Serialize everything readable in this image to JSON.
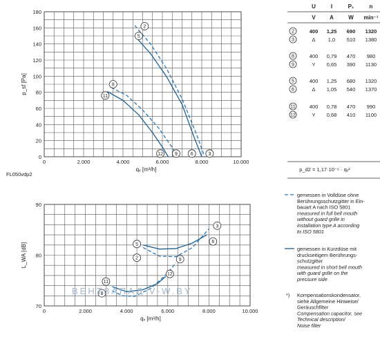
{
  "footer_code": "FL050vdp2",
  "watermark": "ВЕНТЗАПАД   V-W.BY",
  "chart_data": [
    {
      "type": "line",
      "xlabel": "qᵥ [m³/h]",
      "ylabel": "p_sf [Pa]",
      "xlim": [
        0,
        10000
      ],
      "ylim": [
        0,
        180
      ],
      "xticks": [
        0,
        2000,
        4000,
        6000,
        8000,
        10000
      ],
      "xtick_labels": [
        "0",
        "2.000",
        "4.000",
        "6.000",
        "8.000",
        "10.000"
      ],
      "yticks": [
        0,
        20,
        40,
        60,
        80,
        100,
        120,
        140,
        160,
        180
      ],
      "grid": true,
      "series": [
        {
          "marker": "2",
          "style": "dashed",
          "x": [
            4600,
            5400,
            6200,
            7000,
            7700,
            8150
          ],
          "y": [
            163,
            140,
            110,
            72,
            30,
            0
          ]
        },
        {
          "marker": "5",
          "style": "solid",
          "x": [
            4600,
            5400,
            6200,
            7000,
            7600,
            8000
          ],
          "y": [
            150,
            128,
            100,
            65,
            25,
            0
          ]
        },
        {
          "marker": "8",
          "style": "dashed",
          "x": [
            3400,
            4200,
            5000,
            5800,
            6400,
            6800
          ],
          "y": [
            86,
            76,
            58,
            36,
            15,
            0
          ]
        },
        {
          "marker": "11",
          "style": "solid",
          "x": [
            3200,
            4000,
            4800,
            5500,
            6000,
            6300
          ],
          "y": [
            81,
            70,
            52,
            30,
            12,
            0
          ]
        }
      ],
      "markers": [
        {
          "label": "2",
          "x": 5100,
          "y": 162
        },
        {
          "label": "5",
          "x": 4800,
          "y": 150
        },
        {
          "label": "8",
          "x": 3500,
          "y": 90
        },
        {
          "label": "11",
          "x": 3100,
          "y": 76
        },
        {
          "label": "12",
          "x": 5900,
          "y": 4
        },
        {
          "label": "9",
          "x": 6700,
          "y": 4
        },
        {
          "label": "6",
          "x": 7500,
          "y": 4
        },
        {
          "label": "3",
          "x": 8400,
          "y": 4
        }
      ]
    },
    {
      "type": "line",
      "xlabel": "qᵥ [m³/h]",
      "ylabel": "L_WA [dB]",
      "xlim": [
        0,
        10000
      ],
      "ylim": [
        70,
        90
      ],
      "xticks": [
        0,
        2000,
        4000,
        6000,
        8000,
        10000
      ],
      "xtick_labels": [
        "0",
        "2.000",
        "4.000",
        "6.000",
        "8.000",
        "10.000"
      ],
      "yticks": [
        70,
        80,
        90
      ],
      "grid": true,
      "series": [
        {
          "marker": "2",
          "style": "dashed",
          "x": [
            4800,
            5600,
            6400,
            7200,
            8000
          ],
          "y": [
            81.5,
            79.8,
            79.7,
            81.5,
            85.2
          ]
        },
        {
          "marker": "5",
          "style": "solid",
          "x": [
            4800,
            5600,
            6400,
            7200,
            7900
          ],
          "y": [
            82.0,
            81.2,
            81.3,
            82.4,
            84.0
          ]
        },
        {
          "marker": "8",
          "style": "dashed",
          "x": [
            3300,
            3800,
            4400,
            5200,
            6000,
            6400
          ],
          "y": [
            73.0,
            72.0,
            71.9,
            73.5,
            76.5,
            78.5
          ]
        },
        {
          "marker": "11",
          "style": "solid",
          "x": [
            3300,
            4000,
            4800,
            5500,
            5900
          ],
          "y": [
            73.8,
            72.8,
            73.2,
            74.4,
            75.8
          ]
        }
      ],
      "markers": [
        {
          "label": "5",
          "x": 4500,
          "y": 82.2
        },
        {
          "label": "2",
          "x": 4500,
          "y": 79.5
        },
        {
          "label": "3",
          "x": 8400,
          "y": 85.8
        },
        {
          "label": "6",
          "x": 8200,
          "y": 82.7
        },
        {
          "label": "9",
          "x": 6600,
          "y": 79.2
        },
        {
          "label": "12",
          "x": 6100,
          "y": 76.3
        },
        {
          "label": "11",
          "x": 3000,
          "y": 74.8
        },
        {
          "label": "8",
          "x": 2800,
          "y": 72.5
        }
      ]
    }
  ],
  "table": {
    "headers": [
      "U",
      "I",
      "P₁",
      "n"
    ],
    "units": [
      "V",
      "A",
      "W",
      "min⁻¹"
    ],
    "rows": [
      {
        "marker": "2",
        "u": "400",
        "i": "1,25",
        "p": "690",
        "n": "1320",
        "bold": true
      },
      {
        "marker": "3",
        "u": "Δ",
        "i": "1,0",
        "p": "510",
        "n": "1380"
      },
      {
        "marker": "8",
        "u": "400",
        "i": "0,79",
        "p": "470",
        "n": "980"
      },
      {
        "marker": "9",
        "u": "Y",
        "i": "0,65",
        "p": "390",
        "n": "1130"
      },
      {
        "marker": "5",
        "u": "400",
        "i": "1,25",
        "p": "680",
        "n": "1320"
      },
      {
        "marker": "6",
        "u": "Δ",
        "i": "1,05",
        "p": "540",
        "n": "1370"
      },
      {
        "marker": "11",
        "u": "400",
        "i": "0,78",
        "p": "470",
        "n": "990"
      },
      {
        "marker": "12",
        "u": "Y",
        "i": "0,68",
        "p": "410",
        "n": "1100"
      }
    ],
    "formula": "p_d2 = 1,17·10⁻⁶ · qᵥ²"
  },
  "legend": [
    {
      "style": "dashed",
      "lines": [
        "gemessen in Volldüse ohne",
        "Berührungsschutzgitter in Ein-",
        "bauart A nach ISO 5801"
      ],
      "italic": [
        "measured in full bell mouth",
        "without guard grille in",
        "installation type A according",
        "to ISO 5801"
      ]
    },
    {
      "style": "solid",
      "lines": [
        "gemessen in Kurzdüse mit",
        "druckseitigem Berührungs-",
        "schutzgitter"
      ],
      "italic": [
        "measured in short bell mouth",
        "with guard grille on the",
        "pressure side"
      ]
    },
    {
      "style": "note",
      "prefix": "*)",
      "lines": [
        "Kompensationskondensator,",
        "siehe Allgemeine Hinweise/",
        "Geräuschfilter"
      ],
      "italic": [
        "Compensation capacitor, see",
        "Technical description/",
        "Noise filter"
      ]
    }
  ]
}
